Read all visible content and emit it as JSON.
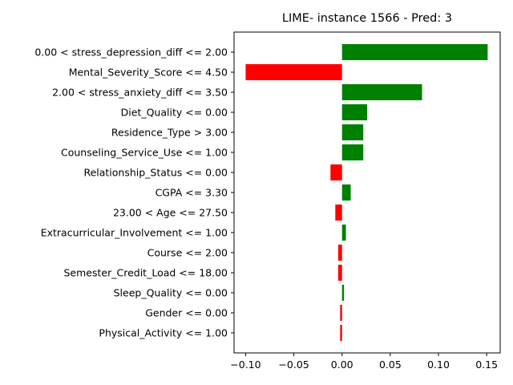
{
  "chart_data": {
    "type": "bar",
    "orientation": "horizontal",
    "title": "LIME- instance 1566 - Pred: 3",
    "xlabel": "",
    "ylabel": "",
    "xlim": [
      -0.112,
      0.164
    ],
    "xticks": [
      -0.1,
      -0.05,
      0.0,
      0.05,
      0.1,
      0.15
    ],
    "xtick_labels": [
      "−0.10",
      "−0.05",
      "0.00",
      "0.05",
      "0.10",
      "0.15"
    ],
    "grid": false,
    "positive_color": "#008000",
    "negative_color": "#ff0000",
    "categories": [
      "0.00 < stress_depression_diff <= 2.00",
      "Mental_Severity_Score <= 4.50",
      "2.00 < stress_anxiety_diff <= 3.50",
      "Diet_Quality <= 0.00",
      "Residence_Type > 3.00",
      "Counseling_Service_Use <= 1.00",
      "Relationship_Status <= 0.00",
      "CGPA <= 3.30",
      "23.00 < Age <= 27.50",
      "Extracurricular_Involvement <= 1.00",
      "Course <= 2.00",
      "Semester_Credit_Load <= 18.00",
      "Sleep_Quality <= 0.00",
      "Gender <= 0.00",
      "Physical_Activity <= 1.00"
    ],
    "values": [
      0.151,
      -0.1,
      0.083,
      0.026,
      0.022,
      0.022,
      -0.012,
      0.009,
      -0.007,
      0.004,
      -0.004,
      -0.004,
      0.002,
      -0.002,
      -0.002
    ]
  }
}
